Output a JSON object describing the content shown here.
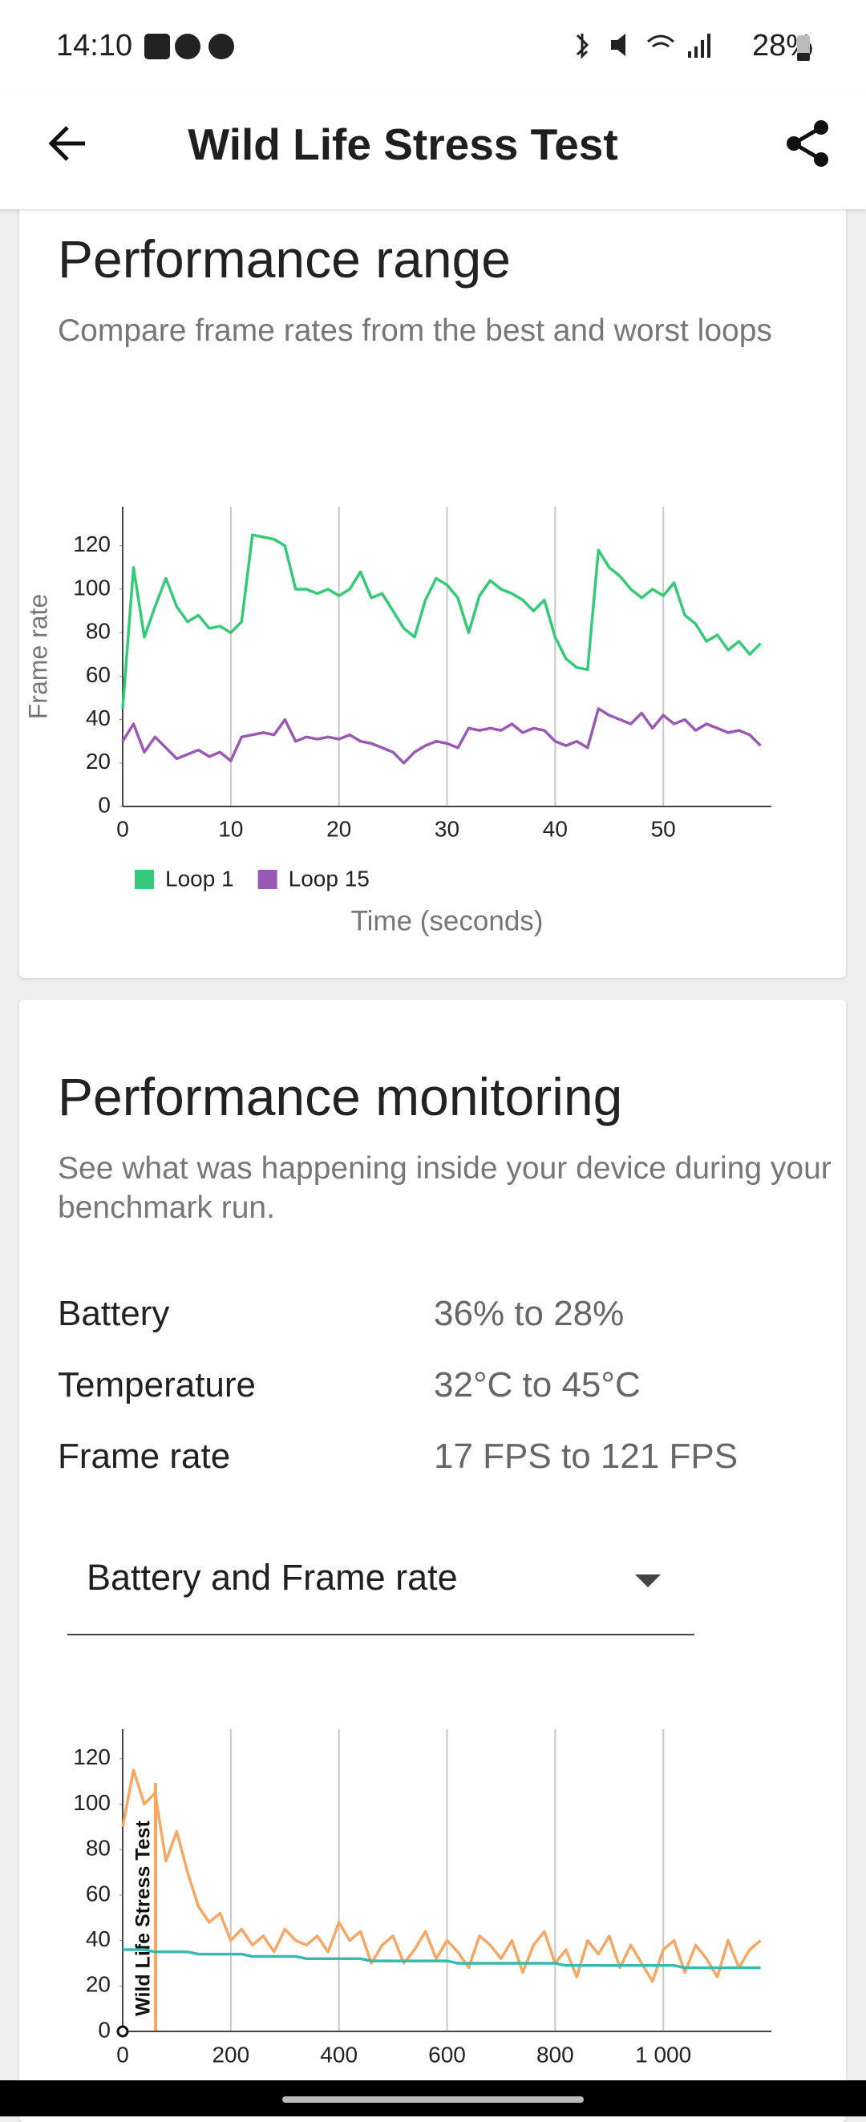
{
  "status_bar": {
    "time": "14:10",
    "battery": "28%"
  },
  "header": {
    "title": "Wild Life Stress Test"
  },
  "performance_range": {
    "title": "Performance range",
    "subtitle": "Compare frame rates from the best and worst loops"
  },
  "performance_monitoring": {
    "title": "Performance monitoring",
    "subtitle": "See what was happening inside your device during your benchmark run.",
    "stats": [
      [
        "Battery",
        "36% to 28%"
      ],
      [
        "Temperature",
        "32°C to 45°C"
      ],
      [
        "Frame rate",
        "17 FPS to 121 FPS"
      ]
    ],
    "dropdown": "Battery and Frame rate"
  },
  "chart_data": [
    {
      "type": "line",
      "ylabel": "Frame rate",
      "xlabel": "Time (seconds)",
      "legend": true,
      "grid": "x",
      "x": [
        0,
        1,
        2,
        3,
        4,
        5,
        6,
        7,
        8,
        9,
        10,
        11,
        12,
        13,
        14,
        15,
        16,
        17,
        18,
        19,
        20,
        21,
        22,
        23,
        24,
        25,
        26,
        27,
        28,
        29,
        30,
        31,
        32,
        33,
        34,
        35,
        36,
        37,
        38,
        39,
        40,
        41,
        42,
        43,
        44,
        45,
        46,
        47,
        48,
        49,
        50,
        51,
        52,
        53,
        54,
        55,
        56,
        57,
        58,
        59
      ],
      "xlim": [
        0,
        60
      ],
      "xticks": [
        0,
        10,
        20,
        30,
        40,
        50
      ],
      "ylim": [
        0,
        138
      ],
      "yticks": [
        0,
        20,
        40,
        60,
        80,
        100,
        120
      ],
      "series": [
        {
          "name": "Loop 1",
          "color": "#35c978",
          "values": [
            45,
            110,
            78,
            92,
            105,
            92,
            85,
            88,
            82,
            83,
            80,
            85,
            125,
            124,
            123,
            120,
            100,
            100,
            98,
            100,
            97,
            100,
            108,
            96,
            98,
            90,
            82,
            78,
            95,
            105,
            102,
            96,
            80,
            97,
            104,
            100,
            98,
            95,
            90,
            95,
            78,
            68,
            64,
            63,
            118,
            110,
            106,
            100,
            96,
            100,
            97,
            103,
            88,
            84,
            76,
            79,
            72,
            76,
            70,
            75
          ]
        },
        {
          "name": "Loop 15",
          "color": "#9b59b6",
          "values": [
            30,
            38,
            25,
            32,
            27,
            22,
            24,
            26,
            23,
            25,
            21,
            32,
            33,
            34,
            33,
            40,
            30,
            32,
            31,
            32,
            31,
            33,
            30,
            29,
            27,
            25,
            20,
            25,
            28,
            30,
            29,
            27,
            36,
            35,
            36,
            35,
            38,
            34,
            36,
            35,
            30,
            28,
            30,
            27,
            45,
            42,
            40,
            38,
            43,
            36,
            42,
            38,
            40,
            35,
            38,
            36,
            34,
            35,
            33,
            28
          ]
        }
      ]
    },
    {
      "type": "line",
      "annotation": "Wild Life Stress Test",
      "legend": false,
      "grid": "x",
      "x": [
        0,
        20,
        40,
        60,
        80,
        100,
        120,
        140,
        160,
        180,
        200,
        220,
        240,
        260,
        280,
        300,
        320,
        340,
        360,
        380,
        400,
        420,
        440,
        460,
        480,
        500,
        520,
        540,
        560,
        580,
        600,
        620,
        640,
        660,
        680,
        700,
        720,
        740,
        760,
        780,
        800,
        820,
        840,
        860,
        880,
        900,
        920,
        940,
        960,
        980,
        1000,
        1020,
        1040,
        1060,
        1080,
        1100,
        1120,
        1140,
        1160,
        1180
      ],
      "xlim": [
        0,
        1200
      ],
      "xticks": [
        0,
        200,
        400,
        600,
        800,
        {
          "value": 1000,
          "label": "1 000"
        }
      ],
      "ylim": [
        0,
        133
      ],
      "yticks": [
        0,
        20,
        40,
        60,
        80,
        100,
        120
      ],
      "series": [
        {
          "name": "Frame rate",
          "color": "#f5a864",
          "values": [
            90,
            115,
            100,
            105,
            75,
            88,
            70,
            55,
            48,
            52,
            40,
            45,
            38,
            42,
            35,
            45,
            40,
            38,
            42,
            35,
            48,
            40,
            44,
            30,
            38,
            42,
            30,
            36,
            44,
            32,
            40,
            35,
            28,
            42,
            38,
            32,
            40,
            26,
            38,
            44,
            30,
            36,
            24,
            40,
            34,
            42,
            28,
            38,
            30,
            22,
            36,
            40,
            26,
            38,
            32,
            24,
            40,
            28,
            36,
            40
          ]
        },
        {
          "name": "Battery",
          "color": "#3bb8b0",
          "values": [
            36,
            36,
            36,
            35,
            35,
            35,
            35,
            34,
            34,
            34,
            34,
            34,
            33,
            33,
            33,
            33,
            33,
            32,
            32,
            32,
            32,
            32,
            32,
            31,
            31,
            31,
            31,
            31,
            31,
            31,
            31,
            30,
            30,
            30,
            30,
            30,
            30,
            30,
            30,
            30,
            30,
            29,
            29,
            29,
            29,
            29,
            29,
            29,
            29,
            29,
            29,
            29,
            28,
            28,
            28,
            28,
            28,
            28,
            28,
            28
          ]
        }
      ]
    }
  ]
}
